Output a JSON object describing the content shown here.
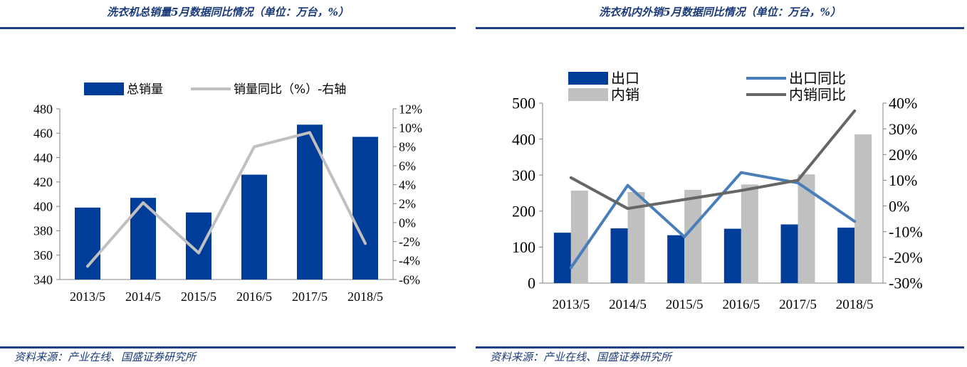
{
  "left": {
    "title": "洗衣机总销量5月数据同比情况（单位：万台，%）",
    "source": "资料来源：产业在线、国盛证券研究所"
  },
  "right": {
    "title": "洗衣机内外销5月数据同比情况（单位：万台，%）",
    "source": "资料来源：产业在线、国盛证券研究所"
  },
  "chart_data": [
    {
      "type": "bar",
      "categories": [
        "2013/5",
        "2014/5",
        "2015/5",
        "2016/5",
        "2017/5",
        "2018/5"
      ],
      "series": [
        {
          "name": "总销量",
          "kind": "bar",
          "axis": "left",
          "color": "#003d99",
          "values": [
            399,
            407,
            395,
            426,
            467,
            457
          ]
        },
        {
          "name": "销量同比（%）-右轴",
          "kind": "line",
          "axis": "right",
          "color": "#c0c0c0",
          "values": [
            -4.6,
            2.1,
            -3.2,
            8.0,
            9.5,
            -2.2
          ]
        }
      ],
      "ylim": [
        340,
        480
      ],
      "yticks": [
        "340",
        "360",
        "380",
        "400",
        "420",
        "440",
        "460",
        "480"
      ],
      "y2lim": [
        -6,
        12
      ],
      "y2ticks": [
        "-6%",
        "-4%",
        "-2%",
        "0%",
        "2%",
        "4%",
        "6%",
        "8%",
        "10%",
        "12%"
      ],
      "legend_position": "top"
    },
    {
      "type": "bar",
      "categories": [
        "2013/5",
        "2014/5",
        "2015/5",
        "2016/5",
        "2017/5",
        "2018/5"
      ],
      "series": [
        {
          "name": "出口",
          "kind": "bar",
          "axis": "left",
          "color": "#003d99",
          "values": [
            140,
            152,
            133,
            151,
            163,
            154
          ]
        },
        {
          "name": "内销",
          "kind": "bar",
          "axis": "left",
          "color": "#c0c0c0",
          "values": [
            257,
            253,
            259,
            274,
            302,
            413
          ]
        },
        {
          "name": "出口同比",
          "kind": "line",
          "axis": "right",
          "color": "#4a7ebb",
          "values": [
            -24,
            8,
            -12,
            13,
            9,
            -6
          ]
        },
        {
          "name": "内销同比",
          "kind": "line",
          "axis": "right",
          "color": "#666666",
          "values": [
            11,
            -1,
            2.5,
            6,
            10,
            37
          ]
        }
      ],
      "ylim": [
        0,
        500
      ],
      "yticks": [
        "0",
        "100",
        "200",
        "300",
        "400",
        "500"
      ],
      "y2lim": [
        -30,
        40
      ],
      "y2ticks": [
        "-30%",
        "-20%",
        "-10%",
        "0%",
        "10%",
        "20%",
        "30%",
        "40%"
      ],
      "legend_position": "top"
    }
  ]
}
